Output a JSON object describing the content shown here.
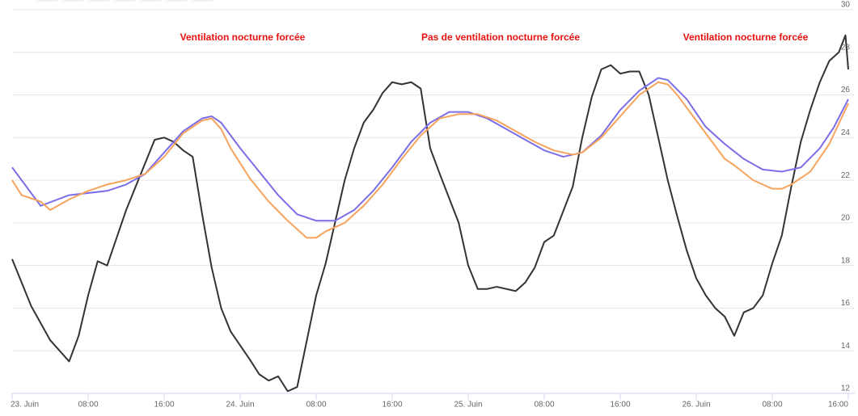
{
  "chart_data": {
    "type": "line",
    "annotations": [
      "Ventilation nocturne forcée",
      "Pas de ventilation nocturne forcée",
      "Ventilation nocturne forcée"
    ],
    "xlim": [
      0,
      88
    ],
    "xticks": [
      {
        "value": 0,
        "label": "23. Juin"
      },
      {
        "value": 8,
        "label": "08:00"
      },
      {
        "value": 16,
        "label": "16:00"
      },
      {
        "value": 24,
        "label": "24. Juin"
      },
      {
        "value": 32,
        "label": "08:00"
      },
      {
        "value": 40,
        "label": "16:00"
      },
      {
        "value": 48,
        "label": "25. Juin"
      },
      {
        "value": 56,
        "label": "08:00"
      },
      {
        "value": 64,
        "label": "16:00"
      },
      {
        "value": 72,
        "label": "26. Juin"
      },
      {
        "value": 80,
        "label": "08:00"
      },
      {
        "value": 88,
        "label": "16:00"
      }
    ],
    "ylim": [
      12,
      30
    ],
    "yticks": [
      12,
      14,
      16,
      18,
      20,
      22,
      24,
      26,
      28,
      30
    ],
    "grid": true,
    "series": [
      {
        "color": "#333333",
        "x": [
          0,
          2,
          4,
          6,
          7,
          8,
          9,
          10,
          12,
          15,
          16,
          17,
          18,
          19,
          20,
          21,
          22,
          23,
          25,
          26,
          27,
          28,
          29,
          30,
          32,
          33,
          35,
          36,
          37,
          38,
          39,
          40,
          41,
          42,
          43,
          44,
          45,
          47,
          48,
          49,
          50,
          51,
          53,
          54,
          55,
          56,
          57,
          59,
          60,
          61,
          62,
          63,
          64,
          65,
          66,
          67,
          68,
          69,
          70,
          71,
          72,
          73,
          74,
          75,
          76,
          77,
          78,
          79,
          80,
          81,
          82,
          83,
          84,
          85,
          86,
          87,
          87.7,
          88
        ],
        "values": [
          18.3,
          16.1,
          14.5,
          13.5,
          14.7,
          16.6,
          18.2,
          18.0,
          20.6,
          23.9,
          24.0,
          23.8,
          23.4,
          23.1,
          20.4,
          17.9,
          16.0,
          14.9,
          13.6,
          12.9,
          12.6,
          12.8,
          12.1,
          12.3,
          16.6,
          18.1,
          22.0,
          23.5,
          24.7,
          25.3,
          26.1,
          26.6,
          26.5,
          26.6,
          26.3,
          23.5,
          22.3,
          20.0,
          18.0,
          16.9,
          16.9,
          17.0,
          16.8,
          17.2,
          17.9,
          19.1,
          19.4,
          21.7,
          24.0,
          25.9,
          27.2,
          27.4,
          27.0,
          27.1,
          27.1,
          26.0,
          24.0,
          22.0,
          20.3,
          18.7,
          17.4,
          16.6,
          16.0,
          15.6,
          14.7,
          15.8,
          16.0,
          16.6,
          18.1,
          19.4,
          21.7,
          23.8,
          25.3,
          26.6,
          27.6,
          28.0,
          28.8,
          27.2
        ]
      },
      {
        "color": "#7b6ee8",
        "x": [
          0,
          3,
          6,
          10,
          12,
          14,
          16,
          18,
          20,
          21,
          22,
          24,
          26,
          28,
          30,
          32,
          34,
          36,
          38,
          40,
          42,
          44,
          46,
          48,
          50,
          52,
          54,
          56,
          58,
          60,
          62,
          64,
          66,
          68,
          69,
          71,
          73,
          75,
          77,
          79,
          81,
          83,
          85,
          86.5,
          88
        ],
        "values": [
          22.6,
          20.8,
          21.3,
          21.5,
          21.8,
          22.3,
          23.3,
          24.3,
          24.9,
          25.0,
          24.7,
          23.5,
          22.4,
          21.3,
          20.4,
          20.1,
          20.1,
          20.6,
          21.5,
          22.6,
          23.8,
          24.7,
          25.2,
          25.2,
          24.9,
          24.4,
          23.9,
          23.4,
          23.1,
          23.3,
          24.1,
          25.3,
          26.2,
          26.8,
          26.7,
          25.8,
          24.5,
          23.7,
          23.0,
          22.5,
          22.4,
          22.6,
          23.5,
          24.5,
          25.8
        ]
      },
      {
        "color": "#f7a35c",
        "x": [
          0,
          1,
          3,
          4,
          6,
          8,
          10,
          12,
          14,
          16,
          18,
          20,
          21,
          22,
          23,
          25,
          27,
          29,
          31,
          32,
          33,
          35,
          37,
          39,
          41,
          43,
          45,
          47,
          49,
          51,
          53,
          55,
          57,
          59,
          60,
          62,
          64,
          66,
          68,
          69,
          70,
          72,
          74,
          75,
          76,
          78,
          80,
          81,
          82,
          84,
          86,
          88
        ],
        "values": [
          22.0,
          21.3,
          21.0,
          20.6,
          21.1,
          21.5,
          21.8,
          22.0,
          22.3,
          23.1,
          24.2,
          24.8,
          24.9,
          24.4,
          23.5,
          22.1,
          21.0,
          20.1,
          19.3,
          19.3,
          19.6,
          20.0,
          20.8,
          21.8,
          23.0,
          24.1,
          24.9,
          25.1,
          25.1,
          24.8,
          24.3,
          23.8,
          23.4,
          23.2,
          23.3,
          24.0,
          25.0,
          26.0,
          26.6,
          26.5,
          26.0,
          24.8,
          23.6,
          23.0,
          22.7,
          22.0,
          21.6,
          21.6,
          21.8,
          22.4,
          23.7,
          25.6
        ]
      }
    ]
  }
}
